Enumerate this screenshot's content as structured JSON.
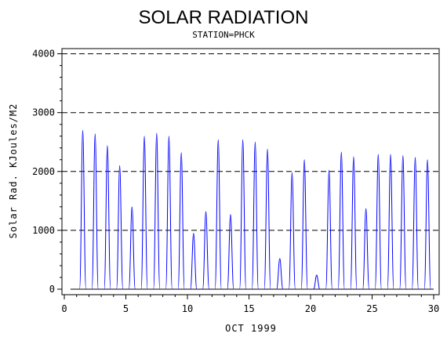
{
  "chart_data": {
    "type": "line",
    "title": "SOLAR RADIATION",
    "subtitle": "STATION=PHCK",
    "xlabel": "OCT 1999",
    "ylabel": "Solar Rad. KJoules/M2",
    "xlim": [
      0,
      30
    ],
    "ylim": [
      0,
      4000
    ],
    "x_ticks": [
      0,
      5,
      10,
      15,
      20,
      25,
      30
    ],
    "y_ticks": [
      0,
      1000,
      2000,
      3000,
      4000
    ],
    "grid": "horizontal dashed at each y tick",
    "series": [
      {
        "color": "#0000ff",
        "daily_peaks": [
          {
            "day": 1,
            "peak": 2700
          },
          {
            "day": 2,
            "peak": 2640
          },
          {
            "day": 3,
            "peak": 2440
          },
          {
            "day": 4,
            "peak": 2100
          },
          {
            "day": 5,
            "peak": 1400
          },
          {
            "day": 6,
            "peak": 2600
          },
          {
            "day": 7,
            "peak": 2650
          },
          {
            "day": 8,
            "peak": 2600
          },
          {
            "day": 9,
            "peak": 2320
          },
          {
            "day": 10,
            "peak": 950
          },
          {
            "day": 11,
            "peak": 1320
          },
          {
            "day": 12,
            "peak": 2540
          },
          {
            "day": 13,
            "peak": 1270
          },
          {
            "day": 14,
            "peak": 2540
          },
          {
            "day": 15,
            "peak": 2500
          },
          {
            "day": 16,
            "peak": 2380
          },
          {
            "day": 17,
            "peak": 520
          },
          {
            "day": 18,
            "peak": 1980
          },
          {
            "day": 19,
            "peak": 2200
          },
          {
            "day": 20,
            "peak": 240
          },
          {
            "day": 21,
            "peak": 2020
          },
          {
            "day": 22,
            "peak": 2330
          },
          {
            "day": 23,
            "peak": 2250
          },
          {
            "day": 24,
            "peak": 1370
          },
          {
            "day": 25,
            "peak": 2290
          },
          {
            "day": 26,
            "peak": 2290
          },
          {
            "day": 27,
            "peak": 2270
          },
          {
            "day": 28,
            "peak": 2240
          },
          {
            "day": 29,
            "peak": 2200
          }
        ]
      }
    ]
  }
}
